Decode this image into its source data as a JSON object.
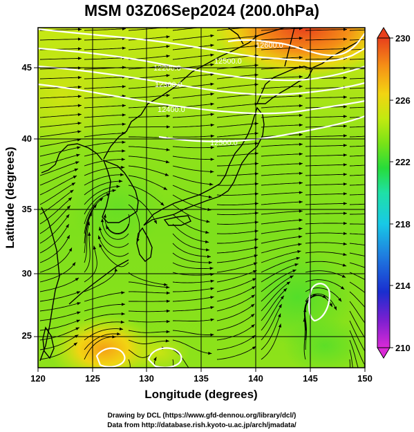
{
  "title": "MSM 03Z06Sep2024 (200.0hPa)",
  "xlabel": "Longitude (degrees)",
  "ylabel": "Latitude  (degrees)",
  "x_ticks": [
    "120",
    "125",
    "130",
    "135",
    "140",
    "145",
    "150"
  ],
  "y_ticks": [
    "25",
    "30",
    "35",
    "40",
    "45"
  ],
  "colorbar": {
    "ticks": [
      "230",
      "226",
      "222",
      "218",
      "214",
      "210"
    ],
    "range": [
      210,
      230
    ],
    "colors": [
      "#d92ad6",
      "#7a1fd0",
      "#1a2ecf",
      "#1f7fe0",
      "#18c9e6",
      "#1fe0a6",
      "#27dc3a",
      "#79e317",
      "#c2ea10",
      "#f2d412",
      "#f59016",
      "#e8401c"
    ]
  },
  "contour_labels": [
    "12600.0",
    "12500.0",
    "12400.0",
    "12300.0",
    "12200.0",
    "12500.0"
  ],
  "credits": [
    "Drawing by DCL (https://www.gfd-dennou.org/library/dcl/)",
    "Data from http://database.rish.kyoto-u.ac.jp/arch/jmadata/"
  ]
}
